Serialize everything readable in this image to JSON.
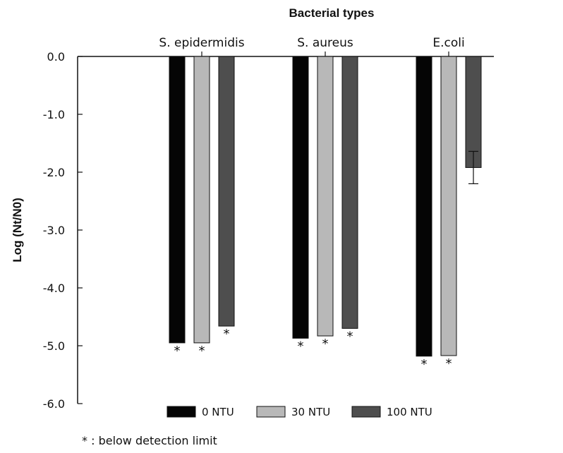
{
  "chart_data": {
    "type": "bar",
    "title": "Bacterial types",
    "ylabel": "Log (Nt/N0)",
    "xlabel": "",
    "ylim": [
      -6.0,
      0.0
    ],
    "yticks": [
      "0.0",
      "-1.0",
      "-2.0",
      "-3.0",
      "-4.0",
      "-5.0",
      "-6.0"
    ],
    "categories": [
      "S. epidermidis",
      "S. aureus",
      "E.coli"
    ],
    "category_axis_position": "top",
    "grid": false,
    "legend_position": "bottom",
    "series": [
      {
        "name": "0 NTU",
        "color": "#050505",
        "values": [
          -4.95,
          -4.87,
          -5.18
        ],
        "below_detection": [
          true,
          true,
          true
        ],
        "error": [
          null,
          null,
          null
        ]
      },
      {
        "name": "30 NTU",
        "color": "#b8b8b8",
        "values": [
          -4.95,
          -4.83,
          -5.17
        ],
        "below_detection": [
          true,
          true,
          true
        ],
        "error": [
          null,
          null,
          null
        ]
      },
      {
        "name": "100 NTU",
        "color": "#4e4e4e",
        "values": [
          -4.66,
          -4.7,
          -1.92
        ],
        "below_detection": [
          true,
          true,
          false
        ],
        "error": [
          null,
          null,
          0.28
        ]
      }
    ],
    "footnote_marker": "*",
    "footnote": "* : below detection limit"
  }
}
